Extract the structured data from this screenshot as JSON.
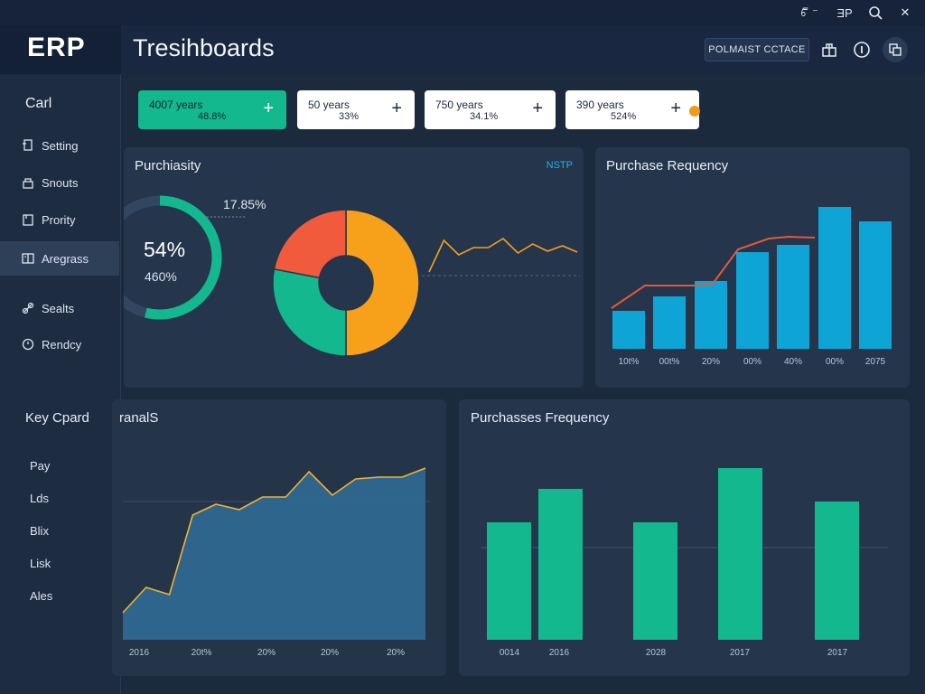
{
  "window_controls": {
    "a": "ꔿ ⁻",
    "b": "ƎP",
    "search": "⌕",
    "close": "✕"
  },
  "header": {
    "logo": "ERP",
    "title": "Tresihboards",
    "button_label": "POLMAIST  CCTACE"
  },
  "sidebar": {
    "heading": "Carl",
    "items": [
      {
        "label": "Setting",
        "icon": "document-icon"
      },
      {
        "label": "Snouts",
        "icon": "lock-icon"
      },
      {
        "label": "Prority",
        "icon": "box-icon"
      },
      {
        "label": "Aregrass",
        "icon": "book-icon",
        "active": true
      },
      {
        "label": "Sealts",
        "icon": "link-icon"
      },
      {
        "label": "Rendcy",
        "icon": "clock-icon"
      }
    ],
    "section_heading": "Key Cpard",
    "sub_items": [
      "Pay",
      "Lds",
      "Blix",
      "Lisk",
      "Ales"
    ]
  },
  "chips": [
    {
      "line1": "4007 years",
      "line2": "48.8%",
      "plus": "+",
      "style": "green"
    },
    {
      "line1": "50 years",
      "line2": "33%",
      "plus": "+",
      "style": "white"
    },
    {
      "line1": "750 years",
      "line2": "34.1%",
      "plus": "+",
      "style": "white"
    },
    {
      "line1": "390 years",
      "line2": "524%",
      "plus": "+",
      "style": "white"
    }
  ],
  "panel_purchiasity": {
    "title": "Purchiasity",
    "tag": "NSTP",
    "gauge_main": "54%",
    "gauge_sub": "460%",
    "callout": "17.85%",
    "gauge_fraction": 0.54
  },
  "panel_frequency": {
    "title": "Purchase Requency",
    "ticks": [
      "10t%",
      "00t%",
      "20%",
      "00%",
      "40%",
      "00%",
      "2075"
    ]
  },
  "panel_ranals": {
    "title": "ranalS",
    "ticks": [
      "2016",
      "20t%",
      "20%",
      "20%",
      "20%"
    ]
  },
  "panel_purchases": {
    "title": "Purchasses Frequency",
    "ticks": [
      "0014",
      "2016",
      "2028",
      "2017",
      "2017"
    ]
  },
  "colors": {
    "accent_green": "#14b88e",
    "accent_orange": "#f7a01a",
    "accent_red": "#ef5b3c",
    "accent_blue": "#0ea5d6",
    "accent_cyan": "#22b3e6",
    "line_red": "#e15a3a"
  },
  "chart_data": [
    {
      "type": "pie",
      "title": "",
      "slices": [
        {
          "value": 50,
          "color": "#f7a01a"
        },
        {
          "value": 28,
          "color": "#14b88e"
        },
        {
          "value": 22,
          "color": "#ef5b3c"
        }
      ]
    },
    {
      "type": "line",
      "values": [
        3,
        38,
        22,
        30,
        30,
        40,
        24,
        34,
        26,
        32,
        25
      ]
    },
    {
      "type": "bar",
      "title": "Purchase Requency",
      "values": [
        42,
        58,
        75,
        107,
        115,
        157,
        141
      ],
      "line": [
        45,
        70,
        70,
        72,
        110,
        122,
        124,
        123
      ],
      "ylim": [
        0,
        170
      ]
    },
    {
      "type": "area",
      "title": "ranalS",
      "values": [
        30,
        58,
        50,
        138,
        150,
        144,
        158,
        158,
        186,
        160,
        178,
        180,
        180,
        190
      ],
      "ylim": [
        0,
        210
      ]
    },
    {
      "type": "bar",
      "title": "Purchasses Frequency",
      "values": [
        130,
        167,
        130,
        190,
        153
      ],
      "ylim": [
        0,
        210
      ]
    }
  ]
}
